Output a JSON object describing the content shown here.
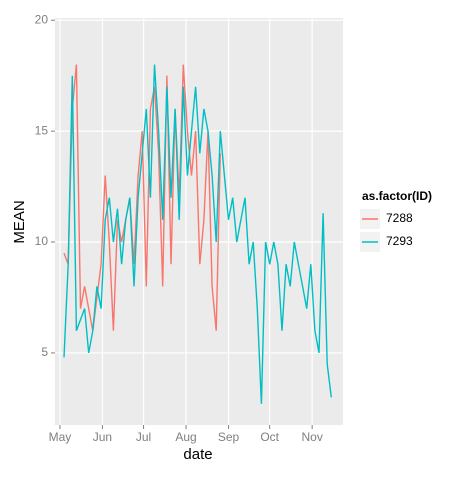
{
  "chart_data": {
    "type": "line",
    "x_label": "date",
    "y_label": "MEAN",
    "legend_title": "as.factor(ID)",
    "legend_position": "right",
    "grid": true,
    "x": [
      3,
      6,
      9,
      12,
      15,
      18,
      21,
      24,
      27,
      30,
      33,
      36,
      39,
      42,
      45,
      48,
      51,
      54,
      57,
      60,
      63,
      66,
      69,
      72,
      75,
      78,
      81,
      84,
      87,
      90,
      93,
      96,
      99,
      102,
      105,
      108,
      111,
      114,
      117,
      120,
      123,
      126,
      129,
      132,
      135,
      138,
      141,
      144,
      147,
      150,
      153,
      156,
      159,
      162,
      165,
      168,
      171,
      174,
      177,
      180,
      183,
      186,
      189,
      192,
      195,
      198
    ],
    "xlim": [
      -3.6,
      206.5
    ],
    "xticks": [
      {
        "value": 0,
        "label": "May"
      },
      {
        "value": 31,
        "label": "Jun"
      },
      {
        "value": 61,
        "label": "Jul"
      },
      {
        "value": 92,
        "label": "Aug"
      },
      {
        "value": 123,
        "label": "Sep"
      },
      {
        "value": 153,
        "label": "Oct"
      },
      {
        "value": 184,
        "label": "Nov"
      }
    ],
    "ylim": [
      1.75,
      20.1
    ],
    "yticks": [
      5,
      10,
      15,
      20
    ],
    "series": [
      {
        "name": "7288",
        "color": "#f8766d",
        "values": [
          9.5,
          9,
          16,
          18,
          7,
          8,
          7,
          6,
          7.5,
          9,
          13,
          10,
          6,
          11,
          10,
          11,
          12,
          9,
          13,
          15,
          8,
          16,
          17,
          14,
          8,
          17.5,
          9,
          16,
          12,
          18,
          15,
          13,
          15,
          9,
          11,
          15,
          8,
          6,
          14,
          null,
          null,
          null,
          null,
          null,
          null,
          null,
          null,
          null,
          null,
          null,
          null,
          null,
          null,
          null,
          null,
          null,
          null,
          null,
          null,
          null,
          null,
          null,
          null,
          null,
          null,
          null
        ]
      },
      {
        "name": "7293",
        "color": "#00bfc4",
        "values": [
          4.8,
          9,
          17.5,
          6,
          6.5,
          7,
          5,
          6,
          8,
          7,
          11,
          12,
          10,
          11.5,
          9,
          11,
          12,
          8,
          12,
          14,
          16,
          12,
          18,
          15,
          11,
          17,
          12,
          16,
          11,
          17,
          13,
          15,
          17,
          14,
          16,
          15,
          13,
          10,
          15,
          13,
          11,
          12,
          10,
          11,
          12,
          9,
          10,
          7,
          2.7,
          10,
          9,
          10,
          9,
          6,
          9,
          8,
          10,
          9,
          8,
          7,
          9,
          6,
          5,
          11.3,
          4.5,
          3
        ]
      }
    ]
  }
}
